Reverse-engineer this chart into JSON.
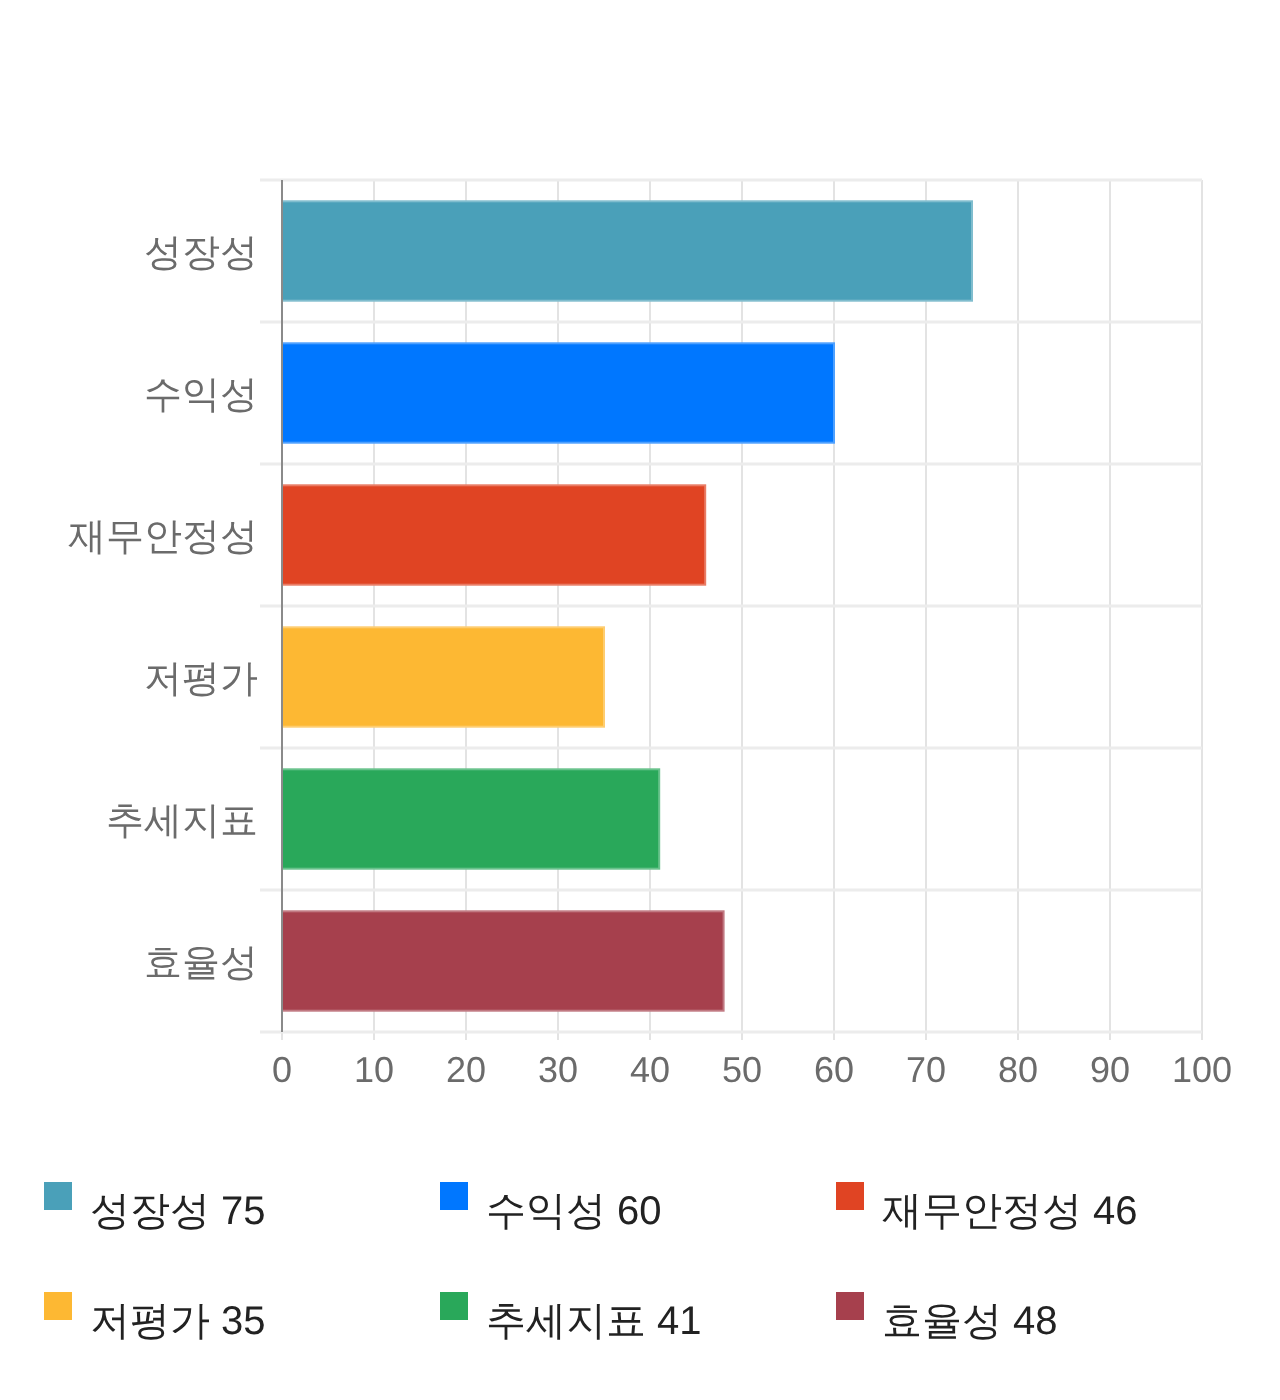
{
  "chart_data": {
    "type": "bar",
    "orientation": "horizontal",
    "stacked": true,
    "categories": [
      "성장성",
      "수익성",
      "재무안정성",
      "저평가",
      "추세지표",
      "효율성"
    ],
    "series": [
      {
        "name": "성장성 75",
        "color": "#4aa0b9",
        "values": [
          75,
          null,
          null,
          null,
          null,
          null
        ]
      },
      {
        "name": "수익성 60",
        "color": "#0077ff",
        "values": [
          null,
          60,
          null,
          null,
          null,
          null
        ]
      },
      {
        "name": "재무안정성 46",
        "color": "#e04423",
        "values": [
          null,
          null,
          46,
          null,
          null,
          null
        ]
      },
      {
        "name": "저평가 35",
        "color": "#fdb833",
        "values": [
          null,
          null,
          null,
          35,
          null,
          null
        ]
      },
      {
        "name": "추세지표 41",
        "color": "#29a85a",
        "values": [
          null,
          null,
          null,
          null,
          41,
          null
        ]
      },
      {
        "name": "효율성 48",
        "color": "#a6404d",
        "values": [
          null,
          null,
          null,
          null,
          null,
          48
        ]
      }
    ],
    "xlim": [
      0,
      100
    ],
    "xticks": [
      0,
      10,
      20,
      30,
      40,
      50,
      60,
      70,
      80,
      90,
      100
    ],
    "grid": true,
    "legend": "bottom"
  }
}
